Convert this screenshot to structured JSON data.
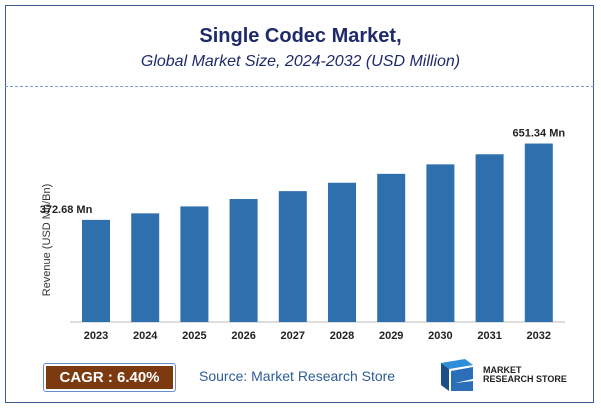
{
  "chart_data": {
    "type": "bar",
    "title": "Single Codec Market,",
    "subtitle": "Global Market Size, 2024-2032 (USD Million)",
    "ylabel": "Revenue (USD Mn/Bn)",
    "xlabel": "",
    "categories": [
      "2023",
      "2024",
      "2025",
      "2026",
      "2027",
      "2028",
      "2029",
      "2030",
      "2031",
      "2032"
    ],
    "values": [
      372.68,
      396.5,
      421.9,
      448.9,
      477.6,
      508.2,
      540.7,
      575.3,
      612.1,
      651.34
    ],
    "data_labels": {
      "0": "372.68 Mn",
      "9": "651.34 Mn"
    },
    "ylim": [
      0,
      700
    ],
    "grid": false,
    "bar_color": "#2e6fad"
  },
  "footer": {
    "cagr": "CAGR : 6.40%",
    "source": "Source: Market Research Store",
    "logo_text": "MARKET RESEARCH STORE"
  }
}
